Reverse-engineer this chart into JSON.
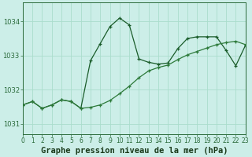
{
  "title": "Graphe pression niveau de la mer (hPa)",
  "background_color": "#cceee8",
  "grid_color": "#aaddcc",
  "line_color_main": "#1a5c2a",
  "line_color_trend": "#2d7a3a",
  "x_min": 0,
  "x_max": 23,
  "y_min": 1030.7,
  "y_max": 1034.55,
  "yticks": [
    1031,
    1032,
    1033,
    1034
  ],
  "xticks": [
    0,
    1,
    2,
    3,
    4,
    5,
    6,
    7,
    8,
    9,
    10,
    11,
    12,
    13,
    14,
    15,
    16,
    17,
    18,
    19,
    20,
    21,
    22,
    23
  ],
  "series1_x": [
    0,
    1,
    2,
    3,
    4,
    5,
    6,
    7,
    8,
    9,
    10,
    11,
    12,
    13,
    14,
    15,
    16,
    17,
    18,
    19,
    20,
    21,
    22,
    23
  ],
  "series1_y": [
    1031.55,
    1031.65,
    1031.45,
    1031.55,
    1031.7,
    1031.65,
    1031.45,
    1032.85,
    1033.35,
    1033.85,
    1034.1,
    1033.9,
    1032.9,
    1032.8,
    1032.75,
    1032.78,
    1033.2,
    1033.5,
    1033.55,
    1033.55,
    1033.55,
    1033.15,
    1032.7,
    1033.3
  ],
  "series2_x": [
    0,
    1,
    2,
    3,
    4,
    5,
    6,
    7,
    8,
    9,
    10,
    11,
    12,
    13,
    14,
    15,
    16,
    17,
    18,
    19,
    20,
    21,
    22,
    23
  ],
  "series2_y": [
    1031.55,
    1031.65,
    1031.45,
    1031.55,
    1031.7,
    1031.65,
    1031.45,
    1031.48,
    1031.55,
    1031.68,
    1031.88,
    1032.1,
    1032.35,
    1032.55,
    1032.65,
    1032.72,
    1032.88,
    1033.02,
    1033.12,
    1033.22,
    1033.32,
    1033.38,
    1033.42,
    1033.32
  ],
  "tick_fontsize": 5.5,
  "title_fontsize": 7.5,
  "spine_color": "#2a6a3a"
}
